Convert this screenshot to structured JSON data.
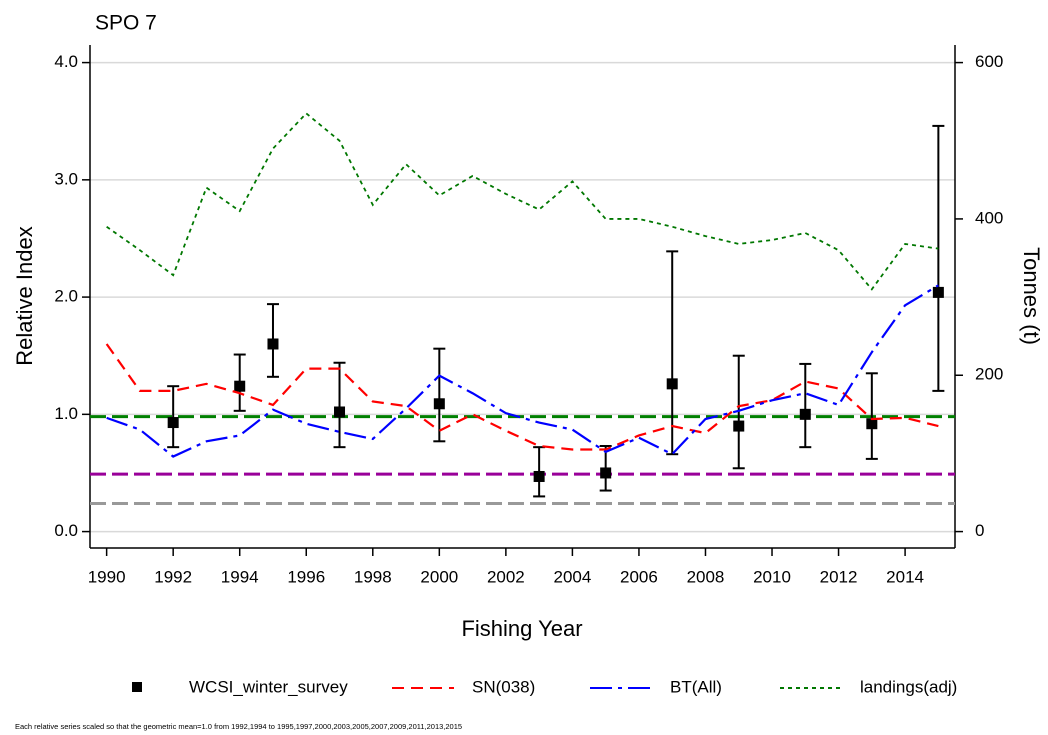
{
  "chart_data": {
    "type": "line",
    "title": "SPO 7",
    "xlabel": "Fishing Year",
    "ylabel": "Relative Index",
    "y2label": "Tonnes (t)",
    "footnote": "Each relative series scaled so that the geometric mean=1.0 from 1992,1994 to 1995,1997,2000,2003,2005,2007,2009,2011,2013,2015",
    "xlim": [
      1989.5,
      2015.5
    ],
    "xticks": [
      1990,
      1992,
      1994,
      1996,
      1998,
      2000,
      2002,
      2004,
      2006,
      2008,
      2010,
      2012,
      2014
    ],
    "ylim": [
      -0.14,
      4.15
    ],
    "yticks": [
      {
        "value": 0,
        "label": "0.0"
      },
      {
        "value": 1,
        "label": "1.0"
      },
      {
        "value": 2,
        "label": "2.0"
      },
      {
        "value": 3,
        "label": "3.0"
      },
      {
        "value": 4,
        "label": "4.0"
      }
    ],
    "y2lim": [
      -21,
      622.5
    ],
    "y2ticks": [
      0,
      200,
      400,
      600
    ],
    "grid": true,
    "legend": "bottom",
    "x": [
      1990,
      1991,
      1992,
      1993,
      1994,
      1995,
      1996,
      1997,
      1998,
      1999,
      2000,
      2001,
      2002,
      2003,
      2004,
      2005,
      2006,
      2007,
      2008,
      2009,
      2010,
      2011,
      2012,
      2013,
      2014,
      2015
    ],
    "series": [
      {
        "name": "WCSI_winter_survey",
        "color": "#000000",
        "style": "points",
        "x": [
          1992,
          1994,
          1995,
          1997,
          2000,
          2003,
          2005,
          2007,
          2009,
          2011,
          2013,
          2015
        ],
        "values": [
          0.93,
          1.24,
          1.6,
          1.02,
          1.09,
          0.47,
          0.5,
          1.26,
          0.9,
          1.0,
          0.92,
          2.04
        ],
        "lower": [
          0.72,
          1.03,
          1.32,
          0.72,
          0.77,
          0.3,
          0.35,
          0.66,
          0.54,
          0.72,
          0.62,
          1.2
        ],
        "upper": [
          1.24,
          1.51,
          1.94,
          1.44,
          1.56,
          0.72,
          0.73,
          2.39,
          1.5,
          1.43,
          1.35,
          3.46
        ]
      },
      {
        "name": "SN(038)",
        "color": "#ff0000",
        "style": "dashed",
        "values": [
          1.6,
          1.2,
          1.2,
          1.26,
          1.18,
          1.08,
          1.39,
          1.39,
          1.11,
          1.07,
          0.86,
          1.0,
          0.86,
          0.73,
          0.7,
          0.7,
          0.82,
          0.9,
          0.84,
          1.07,
          1.12,
          1.28,
          1.22,
          0.96,
          0.97,
          0.9
        ]
      },
      {
        "name": "BT(All)",
        "color": "#0000ff",
        "style": "dashdot",
        "values": [
          0.97,
          0.87,
          0.64,
          0.77,
          0.82,
          1.04,
          0.92,
          0.85,
          0.79,
          1.05,
          1.33,
          1.18,
          1.01,
          0.93,
          0.87,
          0.68,
          0.8,
          0.66,
          0.96,
          1.03,
          1.12,
          1.18,
          1.08,
          1.53,
          1.93,
          2.1
        ]
      },
      {
        "name": "landings(adj)",
        "color": "#007700",
        "style": "dotted",
        "axis": "y2",
        "values": [
          390,
          360,
          328,
          440,
          410,
          490,
          535,
          500,
          418,
          470,
          430,
          455,
          432,
          412,
          448,
          400,
          400,
          390,
          378,
          368,
          373,
          382,
          360,
          310,
          368,
          362
        ]
      }
    ],
    "reference_lines": [
      {
        "value": 0.98,
        "color": "#008000"
      },
      {
        "value": 0.49,
        "color": "#990099"
      },
      {
        "value": 0.24,
        "color": "#999999"
      }
    ]
  }
}
